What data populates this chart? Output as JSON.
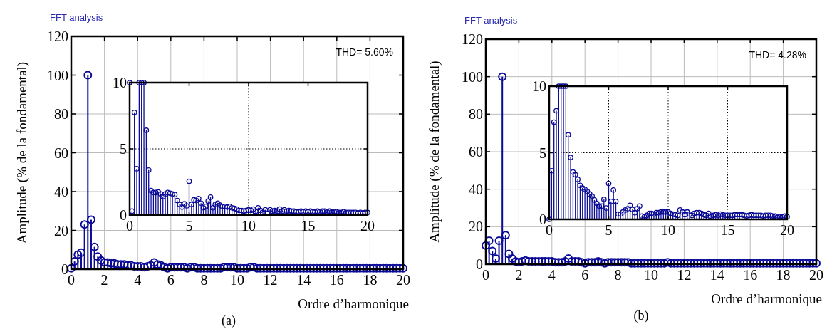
{
  "chart_data": [
    {
      "type": "lollipop",
      "title": "FFT analysis",
      "xlabel": "Ordre d’harmonique",
      "ylabel": "Amplitude (% de la fondamental)",
      "annotations": [
        "THD= 5.60%",
        "(a)"
      ],
      "color": "#0a0a96",
      "marker": "circle",
      "grid": true,
      "xlim": [
        0,
        20
      ],
      "ylim": [
        0,
        120
      ],
      "xticks": [
        0,
        2,
        4,
        6,
        8,
        10,
        12,
        14,
        16,
        18,
        20
      ],
      "yticks": [
        0,
        20,
        40,
        60,
        80,
        100,
        120
      ],
      "x": [
        0,
        0.2,
        0.4,
        0.6,
        0.8,
        1,
        1.2,
        1.4,
        1.6,
        1.8,
        2,
        2.2,
        2.4,
        2.6,
        2.8,
        3,
        3.2,
        3.4,
        3.6,
        3.8,
        4,
        4.2,
        4.4,
        4.6,
        4.8,
        5,
        5.2,
        5.4,
        5.6,
        5.8,
        6,
        6.2,
        6.4,
        6.6,
        6.8,
        7,
        7.2,
        7.4,
        7.6,
        7.8,
        8,
        8.2,
        8.4,
        8.6,
        8.8,
        9,
        9.2,
        9.4,
        9.6,
        9.8,
        10,
        10.2,
        10.4,
        10.6,
        10.8,
        11,
        11.2,
        11.4,
        11.6,
        11.8,
        12,
        12.2,
        12.4,
        12.6,
        12.8,
        13,
        13.2,
        13.4,
        13.6,
        13.8,
        14,
        14.2,
        14.4,
        14.6,
        14.8,
        15,
        15.2,
        15.4,
        15.6,
        15.8,
        16,
        16.2,
        16.4,
        16.6,
        16.8,
        17,
        17.2,
        17.4,
        17.6,
        17.8,
        18,
        18.2,
        18.4,
        18.6,
        18.8,
        19,
        19.2,
        19.4,
        19.6,
        19.8,
        20
      ],
      "values": [
        0.5,
        4,
        7.5,
        8.5,
        23,
        100,
        25.5,
        11.5,
        6.5,
        4.5,
        3.5,
        3.5,
        3,
        3,
        2.5,
        2.5,
        2.5,
        2,
        2,
        1.5,
        1.5,
        1.5,
        1,
        1.5,
        2,
        3.5,
        2.5,
        2,
        1,
        0.5,
        1,
        1,
        1,
        1,
        1,
        0.5,
        1,
        1,
        0.5,
        0.5,
        0.5,
        0.5,
        0.5,
        0.5,
        0.5,
        0.5,
        1,
        1,
        1,
        1,
        0.5,
        0.5,
        0.5,
        0.5,
        1,
        1,
        0.5,
        0.5,
        0.5,
        0.5,
        0.5,
        0.5,
        0.5,
        0.5,
        0.5,
        0.5,
        0.5,
        0.5,
        0.5,
        0.5,
        0.5,
        0.5,
        0.5,
        0.5,
        0.5,
        0.5,
        0.5,
        0.5,
        0.5,
        0.5,
        0.5,
        0.5,
        0.5,
        0.5,
        0.5,
        0.5,
        0.5,
        0.5,
        0.5,
        0.5,
        0.5,
        0.5,
        0.5,
        0.5,
        0.5,
        0.5,
        0.5,
        0.5,
        0.5,
        0.5,
        0.5
      ]
    },
    {
      "type": "lollipop",
      "color": "#0a0a96",
      "marker": "circle",
      "grid": true,
      "xlim": [
        0,
        20
      ],
      "ylim": [
        0,
        10
      ],
      "xticks": [
        0,
        5,
        10,
        15,
        20
      ],
      "yticks": [
        0,
        5,
        10
      ],
      "x": [
        0,
        0.2,
        0.4,
        0.6,
        0.8,
        1,
        1.2,
        1.4,
        1.6,
        1.8,
        2,
        2.2,
        2.4,
        2.6,
        2.8,
        3,
        3.2,
        3.4,
        3.6,
        3.8,
        4,
        4.2,
        4.4,
        4.6,
        4.8,
        5,
        5.2,
        5.4,
        5.6,
        5.8,
        6,
        6.2,
        6.4,
        6.6,
        6.8,
        7,
        7.2,
        7.4,
        7.6,
        7.8,
        8,
        8.2,
        8.4,
        8.6,
        8.8,
        9,
        9.2,
        9.4,
        9.6,
        9.8,
        10,
        10.2,
        10.4,
        10.6,
        10.8,
        11,
        11.2,
        11.4,
        11.6,
        11.8,
        12,
        12.2,
        12.4,
        12.6,
        12.8,
        13,
        13.2,
        13.4,
        13.6,
        13.8,
        14,
        14.2,
        14.4,
        14.6,
        14.8,
        15,
        15.2,
        15.4,
        15.6,
        15.8,
        16,
        16.2,
        16.4,
        16.6,
        16.8,
        17,
        17.2,
        17.4,
        17.6,
        17.8,
        18,
        18.2,
        18.4,
        18.6,
        18.8,
        19,
        19.2,
        19.4,
        19.6,
        19.8,
        20
      ],
      "values": [
        10,
        0.3,
        7.75,
        3.5,
        10,
        10,
        10,
        6.4,
        3.4,
        1.85,
        1.7,
        1.7,
        1.75,
        1.6,
        1.4,
        1.6,
        1.7,
        1.65,
        1.6,
        1.55,
        1.1,
        0.8,
        0.6,
        0.85,
        0.7,
        2.55,
        0.8,
        1.15,
        1.1,
        1.25,
        0.9,
        0.55,
        0.65,
        1.05,
        1.35,
        0.55,
        0.8,
        0.9,
        0.75,
        0.65,
        0.65,
        0.6,
        0.65,
        0.55,
        0.5,
        0.45,
        0.35,
        0.35,
        0.3,
        0.35,
        0.4,
        0.35,
        0.45,
        0.3,
        0.55,
        0.35,
        0.2,
        0.4,
        0.1,
        0.4,
        0.3,
        0.35,
        0.3,
        0.45,
        0.3,
        0.4,
        0.3,
        0.35,
        0.3,
        0.3,
        0.25,
        0.25,
        0.3,
        0.25,
        0.3,
        0.25,
        0.3,
        0.25,
        0.25,
        0.3,
        0.25,
        0.3,
        0.3,
        0.25,
        0.3,
        0.25,
        0.25,
        0.25,
        0.2,
        0.2,
        0.25,
        0.2,
        0.2,
        0.2,
        0.2,
        0.2,
        0.15,
        0.2,
        0.15,
        0.2,
        0.2
      ]
    },
    {
      "type": "lollipop",
      "title": "FFT analysis",
      "xlabel": "Ordre d’harmonique",
      "ylabel": "Amplitude (% de la fondamental)",
      "annotations": [
        "THD= 4.28%",
        "(b)"
      ],
      "color": "#0a0a96",
      "marker": "circle",
      "grid": true,
      "xlim": [
        0,
        20
      ],
      "ylim": [
        0,
        120
      ],
      "xticks": [
        0,
        2,
        4,
        6,
        8,
        10,
        12,
        14,
        16,
        18,
        20
      ],
      "yticks": [
        0,
        20,
        40,
        60,
        80,
        100,
        120
      ],
      "x": [
        0,
        0.2,
        0.4,
        0.6,
        0.8,
        1,
        1.2,
        1.4,
        1.6,
        1.8,
        2,
        2.2,
        2.4,
        2.6,
        2.8,
        3,
        3.2,
        3.4,
        3.6,
        3.8,
        4,
        4.2,
        4.4,
        4.6,
        4.8,
        5,
        5.2,
        5.4,
        5.6,
        5.8,
        6,
        6.2,
        6.4,
        6.6,
        6.8,
        7,
        7.2,
        7.4,
        7.6,
        7.8,
        8,
        8.2,
        8.4,
        8.6,
        8.8,
        9,
        9.2,
        9.4,
        9.6,
        9.8,
        10,
        10.2,
        10.4,
        10.6,
        10.8,
        11,
        11.2,
        11.4,
        11.6,
        11.8,
        12,
        12.2,
        12.4,
        12.6,
        12.8,
        13,
        13.2,
        13.4,
        13.6,
        13.8,
        14,
        14.2,
        14.4,
        14.6,
        14.8,
        15,
        15.2,
        15.4,
        15.6,
        15.8,
        16,
        16.2,
        16.4,
        16.6,
        16.8,
        17,
        17.2,
        17.4,
        17.6,
        17.8,
        18,
        18.2,
        18.4,
        18.6,
        18.8,
        19,
        19.2,
        19.4,
        19.6,
        19.8,
        20
      ],
      "values": [
        10,
        12.5,
        7,
        3,
        12.5,
        100,
        15.5,
        5.5,
        3,
        1.5,
        1,
        1.5,
        2,
        1.5,
        1.5,
        1.5,
        1.5,
        1.5,
        1.5,
        1.5,
        1.5,
        1,
        1,
        1,
        1.5,
        3,
        1.5,
        1.5,
        1.5,
        1,
        0.5,
        1,
        1,
        1,
        1.5,
        1,
        0.5,
        1,
        1,
        1,
        1,
        1,
        1,
        1,
        0.5,
        0.5,
        0.5,
        0.5,
        0.5,
        0.5,
        0.5,
        0.5,
        0.5,
        0.5,
        0.5,
        1,
        0.5,
        0.5,
        0.5,
        0.5,
        0.5,
        0.5,
        0.5,
        0.5,
        0.5,
        0.5,
        0.5,
        0.5,
        0.5,
        0.5,
        0.5,
        0.5,
        0.5,
        0.5,
        0.5,
        0.5,
        0.5,
        0.5,
        0.5,
        0.5,
        0.5,
        0.5,
        0.5,
        0.5,
        0.5,
        0.5,
        0.5,
        0.5,
        0.5,
        0.5,
        0.5,
        0.5,
        0.5,
        0.5,
        0.5,
        0.5,
        0.5,
        0.5,
        0.5,
        0.5,
        0.5
      ]
    },
    {
      "type": "lollipop",
      "color": "#0a0a96",
      "marker": "circle",
      "grid": true,
      "xlim": [
        0,
        20
      ],
      "ylim": [
        0,
        10
      ],
      "xticks": [
        0,
        5,
        10,
        15,
        20
      ],
      "yticks": [
        0,
        5,
        10
      ],
      "x": [
        0,
        0.2,
        0.4,
        0.6,
        0.8,
        1,
        1.2,
        1.4,
        1.6,
        1.8,
        2,
        2.2,
        2.4,
        2.6,
        2.8,
        3,
        3.2,
        3.4,
        3.6,
        3.8,
        4,
        4.2,
        4.4,
        4.6,
        4.8,
        5,
        5.2,
        5.4,
        5.6,
        5.8,
        6,
        6.2,
        6.4,
        6.6,
        6.8,
        7,
        7.2,
        7.4,
        7.6,
        7.8,
        8,
        8.2,
        8.4,
        8.6,
        8.8,
        9,
        9.2,
        9.4,
        9.6,
        9.8,
        10,
        10.2,
        10.4,
        10.6,
        10.8,
        11,
        11.2,
        11.4,
        11.6,
        11.8,
        12,
        12.2,
        12.4,
        12.6,
        12.8,
        13,
        13.2,
        13.4,
        13.6,
        13.8,
        14,
        14.2,
        14.4,
        14.6,
        14.8,
        15,
        15.2,
        15.4,
        15.6,
        15.8,
        16,
        16.2,
        16.4,
        16.6,
        16.8,
        17,
        17.2,
        17.4,
        17.6,
        17.8,
        18,
        18.2,
        18.4,
        18.6,
        18.8,
        19,
        19.2,
        19.4,
        19.6,
        19.8,
        20
      ],
      "values": [
        0,
        3.65,
        7.3,
        8.15,
        10,
        10,
        10,
        10,
        6.35,
        4.65,
        3.55,
        3.35,
        3,
        2.55,
        2.35,
        2.25,
        2.1,
        1.9,
        1.75,
        1.45,
        1.2,
        1,
        1,
        1.5,
        0.85,
        2.7,
        1.35,
        2.2,
        1.35,
        0.4,
        0.4,
        0.55,
        0.7,
        0.8,
        1.05,
        0.75,
        0.5,
        0.8,
        1,
        0.25,
        0.2,
        0.3,
        0.45,
        0.45,
        0.4,
        0.5,
        0.5,
        0.55,
        0.55,
        0.55,
        0.55,
        0.45,
        0.4,
        0.35,
        0.3,
        0.7,
        0.55,
        0.35,
        0.55,
        0.4,
        0.3,
        0.45,
        0.5,
        0.5,
        0.45,
        0.35,
        0.3,
        0.45,
        0.25,
        0.3,
        0.35,
        0.3,
        0.4,
        0.35,
        0.3,
        0.3,
        0.3,
        0.3,
        0.35,
        0.35,
        0.35,
        0.35,
        0.3,
        0.25,
        0.3,
        0.35,
        0.3,
        0.3,
        0.3,
        0.3,
        0.25,
        0.3,
        0.3,
        0.3,
        0.25,
        0.25,
        0.15,
        0.2,
        0.2,
        0.25,
        0.2
      ]
    }
  ]
}
